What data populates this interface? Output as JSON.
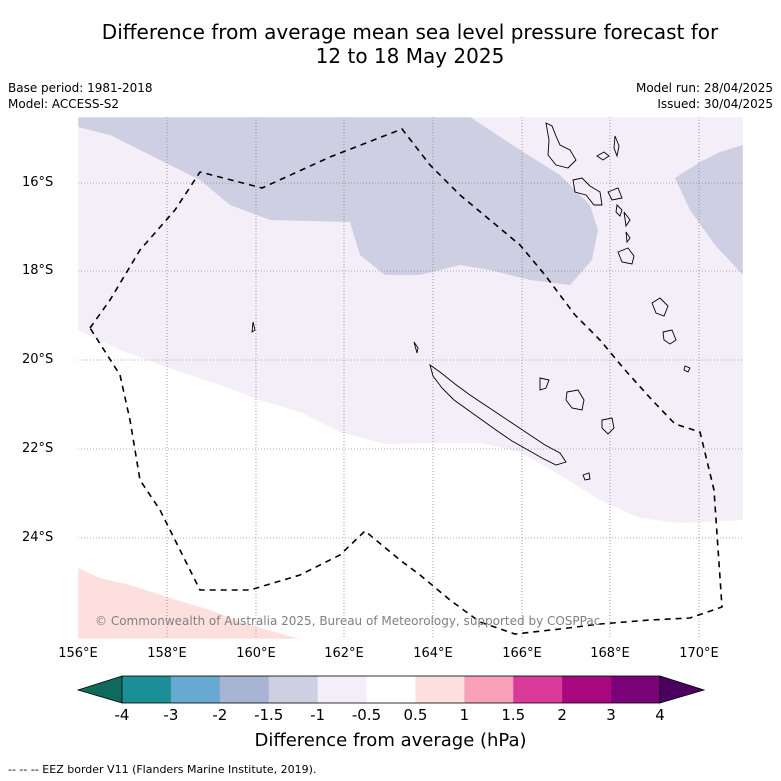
{
  "title_line1": "Difference from average mean sea level pressure forecast for",
  "title_line2": "12 to 18 May 2025",
  "base_period": "Base period: 1981-2018",
  "model": "Model: ACCESS-S2",
  "model_run": "Model run: 28/04/2025",
  "issued": "Issued: 30/04/2025",
  "lat_labels": [
    "16°S",
    "18°S",
    "20°S",
    "22°S",
    "24°S"
  ],
  "lon_labels": [
    "156°E",
    "158°E",
    "160°E",
    "162°E",
    "164°E",
    "166°E",
    "168°E",
    "170°E"
  ],
  "copyright": "© Commonwealth of Australia 2025, Bureau of Meteorology, supported by COSPPac",
  "colorbar": {
    "ticks": [
      "-4",
      "-3",
      "-2",
      "-1.5",
      "-1",
      "-0.5",
      "0.5",
      "1",
      "1.5",
      "2",
      "3",
      "4"
    ],
    "colors": [
      "#1b8f96",
      "#66a9d1",
      "#a8b4d4",
      "#cfcfe4",
      "#f3eef7",
      "#ffffff",
      "#fde0de",
      "#f7a0b8",
      "#d93a9a",
      "#a8077e",
      "#7a0177"
    ],
    "under_color": "#0e6b5c",
    "over_color": "#4b0060",
    "label": "Difference from average (hPa)"
  },
  "footer": "-- -- -- EEZ border V11 (Flanders Marine Institute, 2019).",
  "map_fill_colors": {
    "neg_1_5_to_neg_1": "#cfcfe4",
    "neg_1_to_neg_0_5": "#f3eef7",
    "pos_0_5_to_1": "#fde0de"
  }
}
